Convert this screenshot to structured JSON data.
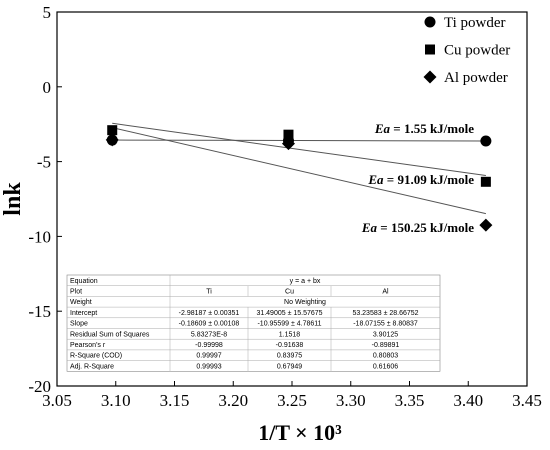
{
  "chart_data": {
    "type": "scatter",
    "x_label": "1/T × 10³",
    "y_label": "lnk",
    "xlim": [
      3.05,
      3.45
    ],
    "xticks": [
      3.05,
      {
        "value": 3.1,
        "label": "3.10"
      },
      3.15,
      {
        "value": 3.2,
        "label": "3.20"
      },
      3.25,
      {
        "value": 3.3,
        "label": "3.30"
      },
      3.35,
      {
        "value": 3.4,
        "label": "3.40"
      },
      3.45
    ],
    "ylim": [
      -20,
      5
    ],
    "yticks": [
      -20,
      -15,
      -10,
      -5,
      0,
      5
    ],
    "legend": "top-right",
    "series": [
      {
        "name": "Ti  powder",
        "marker": "circle",
        "color": "#000000",
        "x": [
          3.097,
          3.247,
          3.415
        ],
        "values": [
          -3.56,
          -3.6,
          -3.62
        ]
      },
      {
        "name": "Cu powder",
        "marker": "square",
        "color": "#000000",
        "x": [
          3.097,
          3.247,
          3.415
        ],
        "values": [
          -2.9,
          -3.2,
          -6.35
        ]
      },
      {
        "name": "Al powder",
        "marker": "diamond",
        "color": "#000000",
        "x": [
          3.097,
          3.247,
          3.415
        ],
        "values": [
          -3.55,
          -3.8,
          -9.25
        ]
      }
    ],
    "fits": [
      {
        "color": "#555555",
        "x": [
          3.097,
          3.415
        ],
        "values": [
          -3.56,
          -3.62
        ]
      },
      {
        "color": "#555555",
        "x": [
          3.097,
          3.415
        ],
        "values": [
          -2.44,
          -5.93
        ]
      },
      {
        "color": "#555555",
        "x": [
          3.097,
          3.415
        ],
        "values": [
          -2.73,
          -8.48
        ]
      }
    ],
    "annotations": [
      {
        "symbol": "Ea",
        "text": " = 1.55 kJ/mole"
      },
      {
        "symbol": "Ea",
        "text": " = 91.09 kJ/mole"
      },
      {
        "symbol": "Ea",
        "text": " = 150.25 kJ/mole"
      }
    ]
  },
  "table": {
    "rows": [
      [
        "Equation",
        "y = a + bx"
      ],
      [
        "Plot",
        "Ti",
        "Cu",
        "Al"
      ],
      [
        "Weight",
        "No Weighting"
      ],
      [
        "Intercept",
        "-2.98187 ± 0.00351",
        "31.49005 ± 15.57675",
        "53.23583 ± 28.66752"
      ],
      [
        "Slope",
        "-0.18609 ± 0.00108",
        "-10.95599 ± 4.78611",
        "-18.07155 ± 8.80837"
      ],
      [
        "Residual Sum of Squares",
        "5.83273E-8",
        "1.1518",
        "3.90125"
      ],
      [
        "Pearson's r",
        "-0.99998",
        "-0.91638",
        "-0.89891"
      ],
      [
        "R-Square (COD)",
        "0.99997",
        "0.83975",
        "0.80803"
      ],
      [
        "Adj. R-Square",
        "0.99993",
        "0.67949",
        "0.61606"
      ]
    ]
  }
}
